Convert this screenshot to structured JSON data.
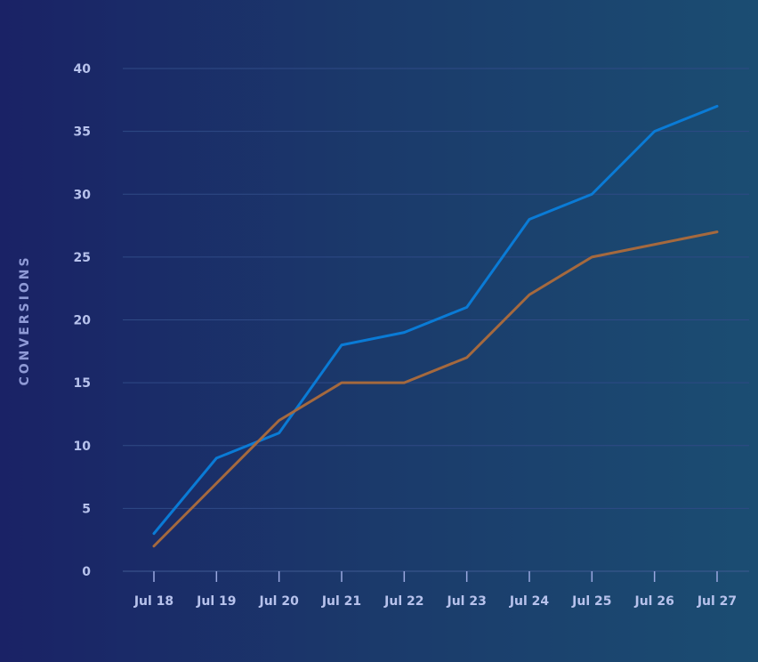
{
  "chart_data": {
    "type": "line",
    "title": "",
    "xlabel": "",
    "ylabel": "CONVERSIONS",
    "categories": [
      "Jul 18",
      "Jul 19",
      "Jul 20",
      "Jul 21",
      "Jul 22",
      "Jul 23",
      "Jul 24",
      "Jul 25",
      "Jul 26",
      "Jul 27"
    ],
    "ylim": [
      0,
      40
    ],
    "yticks": [
      0,
      5,
      10,
      15,
      20,
      25,
      30,
      35,
      40
    ],
    "grid": true,
    "legend": "none",
    "series": [
      {
        "color": "#0a7bd6",
        "values": [
          3,
          9,
          11,
          18,
          19,
          21,
          28,
          30,
          35,
          37
        ]
      },
      {
        "color": "#a5693e",
        "values": [
          2,
          7,
          12,
          15,
          15,
          17,
          22,
          25,
          26,
          27
        ]
      }
    ]
  }
}
